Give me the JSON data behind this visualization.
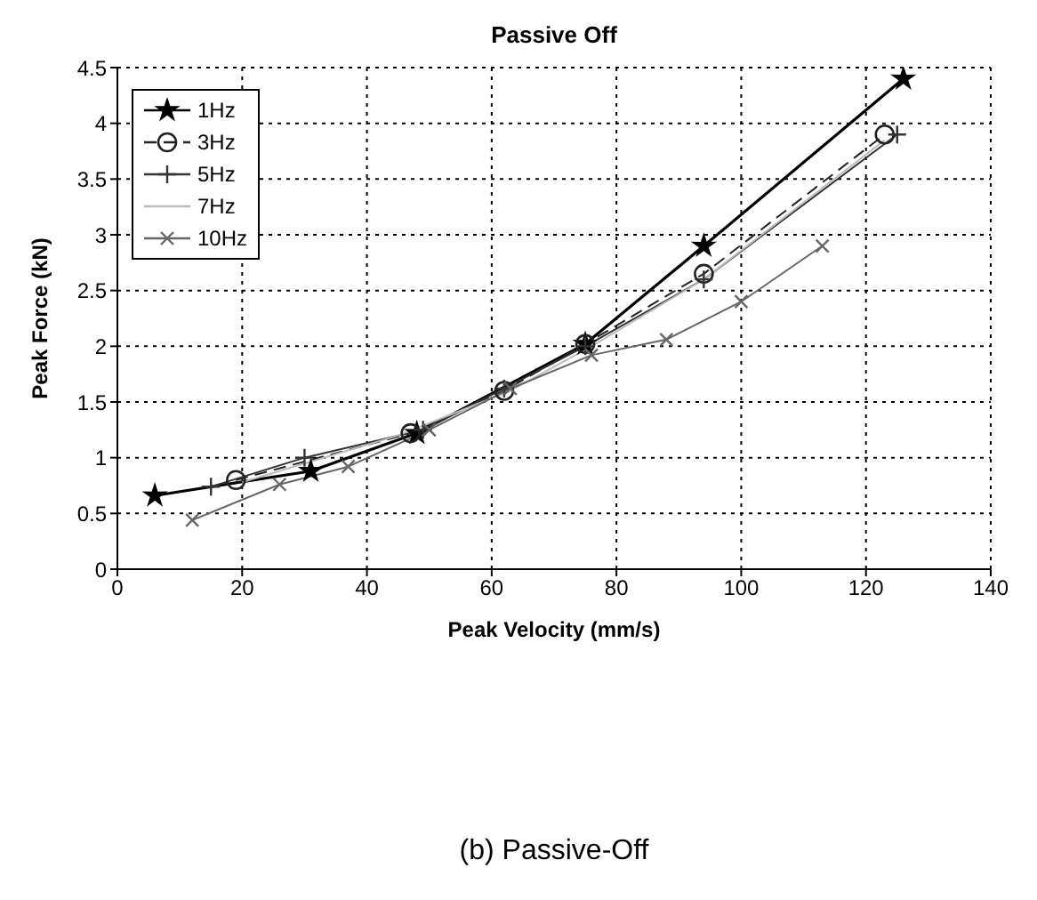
{
  "chart_data": {
    "type": "line",
    "title": "Passive Off",
    "xlabel": "Peak Velocity (mm/s)",
    "ylabel": "Peak Force (kN)",
    "annotations": [
      "(b)  Passive-Off"
    ],
    "xlim": [
      0,
      140
    ],
    "xticks": [
      0,
      20,
      40,
      60,
      80,
      100,
      120,
      140
    ],
    "ylim": [
      0,
      4.5
    ],
    "yticks": [
      0,
      0.5,
      1,
      1.5,
      2,
      2.5,
      3,
      3.5,
      4,
      4.5
    ],
    "grid": true,
    "legend": "top left",
    "series": [
      {
        "name": "1Hz",
        "color": "#000000",
        "marker": "star",
        "line_style": "solid",
        "x": [
          6,
          31,
          48,
          75,
          94,
          126
        ],
        "values": [
          0.66,
          0.88,
          1.22,
          2.02,
          2.9,
          4.4
        ]
      },
      {
        "name": "3Hz",
        "color": "#222222",
        "marker": "circle",
        "line_style": "dashed",
        "x": [
          19,
          47,
          62,
          75,
          94,
          123
        ],
        "values": [
          0.8,
          1.22,
          1.6,
          2.02,
          2.65,
          3.9
        ]
      },
      {
        "name": "5Hz",
        "color": "#333333",
        "marker": "cross",
        "line_style": "solid",
        "x": [
          15,
          30,
          49,
          62,
          75,
          94,
          125
        ],
        "values": [
          0.74,
          1.0,
          1.25,
          1.62,
          2.0,
          2.6,
          3.9
        ]
      },
      {
        "name": "7Hz",
        "color": "#bbbbbb",
        "marker": "none",
        "line_style": "solid",
        "x": [
          20,
          45,
          63,
          76,
          94,
          123
        ],
        "values": [
          0.78,
          1.2,
          1.6,
          2.0,
          2.6,
          3.85
        ]
      },
      {
        "name": "10Hz",
        "color": "#666666",
        "marker": "x",
        "line_style": "solid",
        "x": [
          12,
          26,
          37,
          50,
          63,
          76,
          88,
          100,
          113
        ],
        "values": [
          0.44,
          0.76,
          0.92,
          1.25,
          1.62,
          1.92,
          2.06,
          2.4,
          2.9
        ]
      }
    ]
  }
}
